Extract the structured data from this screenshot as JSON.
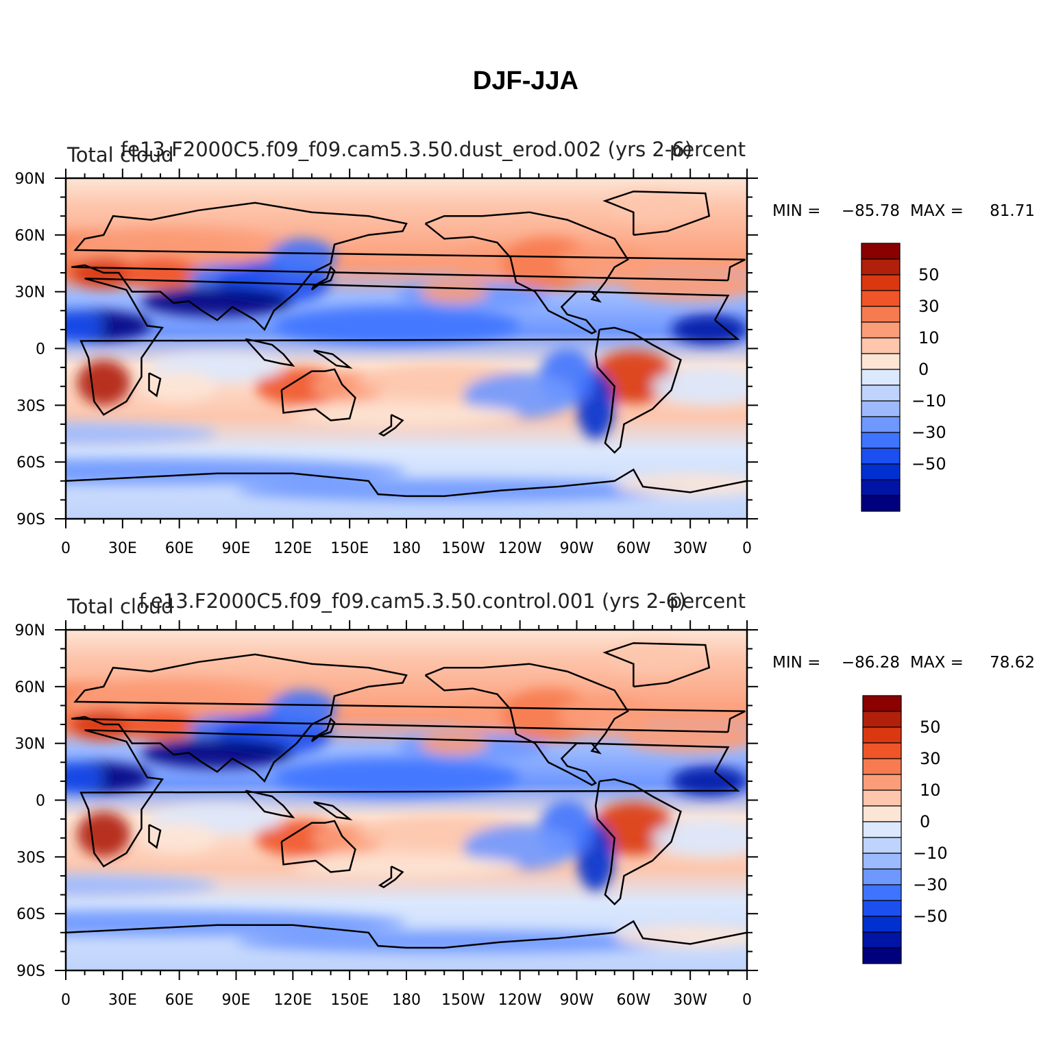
{
  "title": "DJF-JJA",
  "colors": {
    "levels": [
      "#00007f",
      "#0014a6",
      "#0030d0",
      "#1c4ff0",
      "#3f74ff",
      "#6f98ff",
      "#9dbaff",
      "#bfd3fc",
      "#dbe8fd",
      "#fde5d6",
      "#fdc6ad",
      "#fc9d79",
      "#f77b50",
      "#f0552a",
      "#d93810",
      "#b0200a",
      "#8b0000"
    ]
  },
  "chart_data": [
    {
      "type": "heatmap",
      "title_left": "Total cloud",
      "title_center": "fe13.F2000C5.f09_f09.cam5.3.50.dust_erod.002 (yrs 2-6)",
      "title_right": "percent",
      "xticklabels": [
        "0",
        "30E",
        "60E",
        "90E",
        "120E",
        "150E",
        "180",
        "150W",
        "120W",
        "90W",
        "60W",
        "30W",
        "0"
      ],
      "yticklabels": [
        "90N",
        "60N",
        "30N",
        "0",
        "30S",
        "60S",
        "90S"
      ],
      "xlim": [
        0,
        360
      ],
      "ylim": [
        -90,
        90
      ],
      "min_label": "MIN =",
      "min_value": "−85.78",
      "max_label": "MAX =",
      "max_value": "81.71",
      "min": -85.78,
      "max": 81.71,
      "colorbar_levels": [
        -70,
        -60,
        -50,
        -40,
        -30,
        -20,
        -10,
        -5,
        0,
        5,
        10,
        20,
        30,
        40,
        50,
        60,
        70
      ],
      "colorbar_labels": [
        "50",
        "30",
        "10",
        "0",
        "−10",
        "−30",
        "−50"
      ]
    },
    {
      "type": "heatmap",
      "title_left": "Total cloud",
      "title_center": "f.e13.F2000C5.f09_f09.cam5.3.50.control.001 (yrs 2-6)",
      "title_right": "percent",
      "xticklabels": [
        "0",
        "30E",
        "60E",
        "90E",
        "120E",
        "150E",
        "180",
        "150W",
        "120W",
        "90W",
        "60W",
        "30W",
        "0"
      ],
      "yticklabels": [
        "90N",
        "60N",
        "30N",
        "0",
        "30S",
        "60S",
        "90S"
      ],
      "xlim": [
        0,
        360
      ],
      "ylim": [
        -90,
        90
      ],
      "min_label": "MIN =",
      "min_value": "−86.28",
      "max_label": "MAX =",
      "max_value": "78.62",
      "min": -86.28,
      "max": 78.62,
      "colorbar_levels": [
        -70,
        -60,
        -50,
        -40,
        -30,
        -20,
        -10,
        -5,
        0,
        5,
        10,
        20,
        30,
        40,
        50,
        60,
        70
      ],
      "colorbar_labels": [
        "50",
        "30",
        "10",
        "0",
        "−10",
        "−30",
        "−50"
      ]
    }
  ]
}
